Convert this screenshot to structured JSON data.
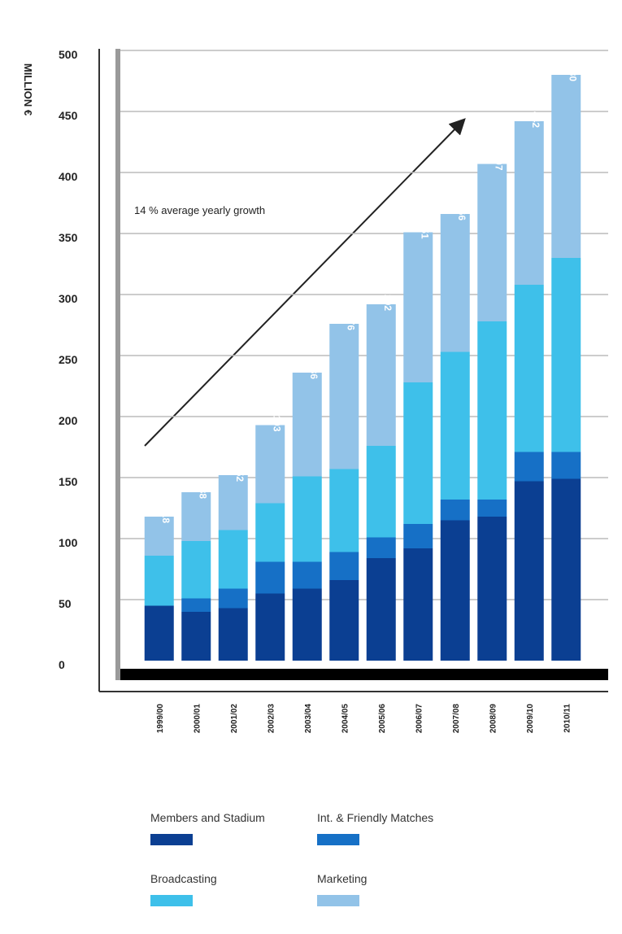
{
  "chart_data": {
    "type": "stacked-bar",
    "y_label": "MILLION €",
    "annotation": "14 % average yearly growth",
    "categories": [
      "1999/00",
      "2000/01",
      "2001/02",
      "2002/03",
      "2003/04",
      "2004/05",
      "2005/06",
      "2006/07",
      "2007/08",
      "2008/09",
      "2009/10",
      "2010/11"
    ],
    "series": [
      {
        "name": "Members and Stadium",
        "color": "#0b3f92",
        "values": [
          45,
          40,
          43,
          55,
          59,
          66,
          84,
          92,
          115,
          118,
          147,
          149
        ]
      },
      {
        "name": "Int. & Friendly Matches",
        "color": "#1670c6",
        "values": [
          0,
          11,
          16,
          26,
          22,
          23,
          17,
          20,
          17,
          14,
          24,
          22
        ]
      },
      {
        "name": "Broadcasting",
        "color": "#3ec0ea",
        "values": [
          41,
          47,
          48,
          48,
          70,
          68,
          75,
          116,
          121,
          146,
          137,
          159
        ]
      },
      {
        "name": "Marketing",
        "color": "#92c3e8",
        "values": [
          32,
          40,
          45,
          64,
          85,
          119,
          116,
          123,
          113,
          129,
          134,
          150
        ]
      }
    ],
    "totals": [
      118,
      138,
      152,
      193,
      236,
      276,
      292,
      351,
      366,
      407,
      442,
      480
    ],
    "ylim": [
      0,
      500
    ],
    "yticks": [
      0,
      50,
      100,
      150,
      200,
      250,
      300,
      350,
      400,
      450,
      500
    ],
    "grid": true
  }
}
